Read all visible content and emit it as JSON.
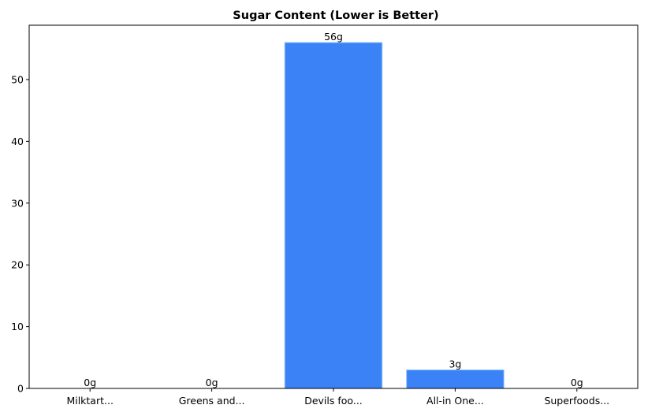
{
  "chart_data": {
    "type": "bar",
    "title": "Sugar Content (Lower is Better)",
    "xlabel": "",
    "ylabel": "",
    "categories": [
      "Milktart...",
      "Greens and...",
      "Devils foo...",
      "All-in One...",
      "Superfoods..."
    ],
    "values": [
      0,
      0,
      56,
      3,
      0
    ],
    "data_labels": [
      "0g",
      "0g",
      "56g",
      "3g",
      "0g"
    ],
    "ylim": [
      0,
      58.8
    ],
    "yticks": [
      0,
      10,
      20,
      30,
      40,
      50
    ],
    "grid": false,
    "bar_color": "#3b82f6",
    "bar_edge_color": "#93c5fd"
  }
}
